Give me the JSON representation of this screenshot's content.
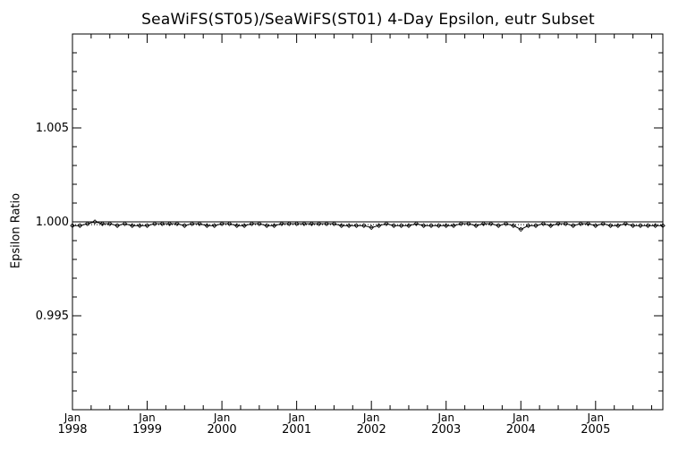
{
  "chart_data": {
    "type": "line",
    "title": "SeaWiFS(ST05)/SeaWiFS(ST01) 4-Day Epsilon, eutr Subset",
    "xlabel": "",
    "ylabel": "Epsilon Ratio",
    "ylim": [
      0.99,
      1.01
    ],
    "xlim": [
      1998.0,
      2005.9
    ],
    "yticks": [
      0.995,
      1.0,
      1.005
    ],
    "ytick_labels": [
      "0.995",
      "1.000",
      "1.005"
    ],
    "xticks": [
      {
        "month": "Jan",
        "year": "1998",
        "x": 1998
      },
      {
        "month": "Jan",
        "year": "1999",
        "x": 1999
      },
      {
        "month": "Jan",
        "year": "2000",
        "x": 2000
      },
      {
        "month": "Jan",
        "year": "2001",
        "x": 2001
      },
      {
        "month": "Jan",
        "year": "2002",
        "x": 2002
      },
      {
        "month": "Jan",
        "year": "2003",
        "x": 2003
      },
      {
        "month": "Jan",
        "year": "2004",
        "x": 2004
      },
      {
        "month": "Jan",
        "year": "2005",
        "x": 2005
      }
    ],
    "reference_lines": [
      {
        "y": 1.0,
        "style": "solid"
      },
      {
        "y": 0.99985,
        "style": "dotted"
      }
    ],
    "series": [
      {
        "marker": "diamond",
        "x": [
          1998.0,
          1998.1,
          1998.2,
          1998.3,
          1998.4,
          1998.5,
          1998.6,
          1998.7,
          1998.8,
          1998.9,
          1999.0,
          1999.1,
          1999.2,
          1999.3,
          1999.4,
          1999.5,
          1999.6,
          1999.7,
          1999.8,
          1999.9,
          2000.0,
          2000.1,
          2000.2,
          2000.3,
          2000.4,
          2000.5,
          2000.6,
          2000.7,
          2000.8,
          2000.9,
          2001.0,
          2001.1,
          2001.2,
          2001.3,
          2001.4,
          2001.5,
          2001.6,
          2001.7,
          2001.8,
          2001.9,
          2002.0,
          2002.1,
          2002.2,
          2002.3,
          2002.4,
          2002.5,
          2002.6,
          2002.7,
          2002.8,
          2002.9,
          2003.0,
          2003.1,
          2003.2,
          2003.3,
          2003.4,
          2003.5,
          2003.6,
          2003.7,
          2003.8,
          2003.9,
          2004.0,
          2004.1,
          2004.2,
          2004.3,
          2004.4,
          2004.5,
          2004.6,
          2004.7,
          2004.8,
          2004.9,
          2005.0,
          2005.1,
          2005.2,
          2005.3,
          2005.4,
          2005.5,
          2005.6,
          2005.7,
          2005.8,
          2005.9
        ],
        "y": [
          0.9998,
          0.9998,
          0.9999,
          1.0,
          0.9999,
          0.9999,
          0.9998,
          0.9999,
          0.9998,
          0.9998,
          0.9998,
          0.9999,
          0.9999,
          0.9999,
          0.9999,
          0.9998,
          0.9999,
          0.9999,
          0.9998,
          0.9998,
          0.9999,
          0.9999,
          0.9998,
          0.9998,
          0.9999,
          0.9999,
          0.9998,
          0.9998,
          0.9999,
          0.9999,
          0.9999,
          0.9999,
          0.9999,
          0.9999,
          0.9999,
          0.9999,
          0.9998,
          0.9998,
          0.9998,
          0.9998,
          0.9997,
          0.9998,
          0.9999,
          0.9998,
          0.9998,
          0.9998,
          0.9999,
          0.9998,
          0.9998,
          0.9998,
          0.9998,
          0.9998,
          0.9999,
          0.9999,
          0.9998,
          0.9999,
          0.9999,
          0.9998,
          0.9999,
          0.9998,
          0.9996,
          0.9998,
          0.9998,
          0.9999,
          0.9998,
          0.9999,
          0.9999,
          0.9998,
          0.9999,
          0.9999,
          0.9998,
          0.9999,
          0.9998,
          0.9998,
          0.9999,
          0.9998,
          0.9998,
          0.9998,
          0.9998,
          0.9998
        ]
      }
    ],
    "grid": false,
    "legend": "none"
  }
}
